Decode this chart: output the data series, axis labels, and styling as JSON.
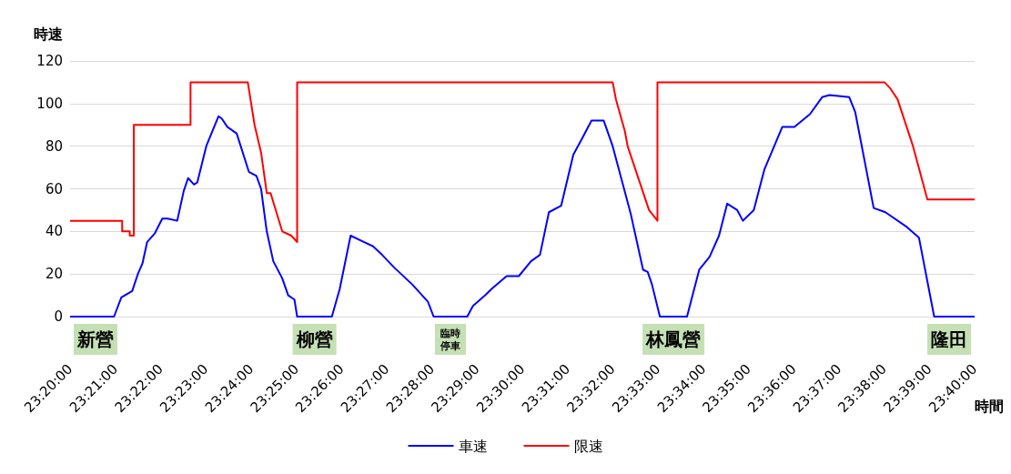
{
  "chart_data": {
    "type": "line",
    "xlabel": "時間",
    "ylabel": "時速",
    "xlim": [
      23.3333,
      23.6667
    ],
    "ylim": [
      0,
      120
    ],
    "yticks": [
      0,
      20,
      40,
      60,
      80,
      100,
      120
    ],
    "xticks": [
      {
        "value": 23.3333,
        "label": "23:20:00"
      },
      {
        "value": 23.35,
        "label": "23:21:00"
      },
      {
        "value": 23.3667,
        "label": "23:22:00"
      },
      {
        "value": 23.3833,
        "label": "23:23:00"
      },
      {
        "value": 23.4,
        "label": "23:24:00"
      },
      {
        "value": 23.4167,
        "label": "23:25:00"
      },
      {
        "value": 23.4333,
        "label": "23:26:00"
      },
      {
        "value": 23.45,
        "label": "23:27:00"
      },
      {
        "value": 23.4667,
        "label": "23:28:00"
      },
      {
        "value": 23.4833,
        "label": "23:29:00"
      },
      {
        "value": 23.5,
        "label": "23:30:00"
      },
      {
        "value": 23.5167,
        "label": "23:31:00"
      },
      {
        "value": 23.5333,
        "label": "23:32:00"
      },
      {
        "value": 23.55,
        "label": "23:33:00"
      },
      {
        "value": 23.5667,
        "label": "23:34:00"
      },
      {
        "value": 23.5833,
        "label": "23:35:00"
      },
      {
        "value": 23.6,
        "label": "23:36:00"
      },
      {
        "value": 23.6167,
        "label": "23:37:00"
      },
      {
        "value": 23.6333,
        "label": "23:38:00"
      },
      {
        "value": 23.65,
        "label": "23:39:00"
      },
      {
        "value": 23.6667,
        "label": "23:40:00"
      }
    ],
    "grid": "y",
    "legend": "bottom",
    "annotations": [
      "新營",
      "柳營",
      "臨時停車",
      "林鳳營",
      "隆田"
    ],
    "series": [
      {
        "name": "車速",
        "color": "#0000ff",
        "x": [
          23.3333,
          23.3495,
          23.3522,
          23.3562,
          23.3583,
          23.36,
          23.3617,
          23.3645,
          23.3673,
          23.3692,
          23.3728,
          23.3752,
          23.3768,
          23.379,
          23.3802,
          23.3835,
          23.388,
          23.3892,
          23.3913,
          23.3947,
          23.3992,
          23.402,
          23.4037,
          23.4058,
          23.4082,
          23.4115,
          23.4137,
          23.416,
          23.417,
          23.4298,
          23.4327,
          23.4367,
          23.4417,
          23.445,
          23.4483,
          23.4528,
          23.4595,
          23.4652,
          23.4673,
          23.4797,
          23.4818,
          23.4863,
          23.4887,
          23.4942,
          23.4987,
          23.5032,
          23.5065,
          23.5098,
          23.5143,
          23.5188,
          23.5222,
          23.5255,
          23.53,
          23.5333,
          23.54,
          23.5445,
          23.5462,
          23.5478,
          23.5507,
          23.5607,
          23.5652,
          23.569,
          23.5725,
          23.5755,
          23.5792,
          23.5813,
          23.5853,
          23.5892,
          23.5915,
          23.5958,
          23.6003,
          23.606,
          23.6105,
          23.6132,
          23.6205,
          23.6227,
          23.6295,
          23.6338,
          23.6418,
          23.6462,
          23.6518,
          23.6667
        ],
        "values": [
          0,
          0,
          9,
          12,
          20,
          25,
          35,
          39,
          46,
          46,
          45,
          59,
          65,
          62,
          63,
          80,
          94,
          93,
          89,
          86,
          68,
          66,
          60,
          40,
          26,
          18,
          10,
          8,
          0,
          0,
          13,
          38,
          35,
          33,
          29,
          23,
          15,
          7,
          0,
          0,
          5,
          10,
          13,
          19,
          19,
          26,
          29,
          49,
          52,
          76,
          84,
          92,
          92,
          80,
          48,
          22,
          21,
          15,
          0,
          0,
          22,
          28,
          38,
          53,
          50,
          45,
          50,
          69,
          76,
          89,
          89,
          95,
          103,
          104,
          103,
          96,
          51,
          49,
          42,
          37,
          0,
          0
        ]
      },
      {
        "name": "限速",
        "color": "#ff0000",
        "x": [
          23.3333,
          23.3525,
          23.3525,
          23.3553,
          23.3553,
          23.3568,
          23.3568,
          23.3777,
          23.3777,
          23.3988,
          23.4013,
          23.4037,
          23.4058,
          23.4072,
          23.4115,
          23.4148,
          23.417,
          23.417,
          23.5333,
          23.5345,
          23.5378,
          23.5388,
          23.5467,
          23.5498,
          23.5498,
          23.6335,
          23.6357,
          23.6383,
          23.644,
          23.6493,
          23.6667
        ],
        "values": [
          45,
          45,
          40,
          40,
          38,
          38,
          90,
          90,
          110,
          110,
          90,
          77,
          58,
          58,
          40,
          38,
          35,
          110,
          110,
          102,
          87,
          80,
          50,
          45,
          110,
          110,
          107,
          102,
          80,
          55,
          55
        ]
      }
    ]
  }
}
